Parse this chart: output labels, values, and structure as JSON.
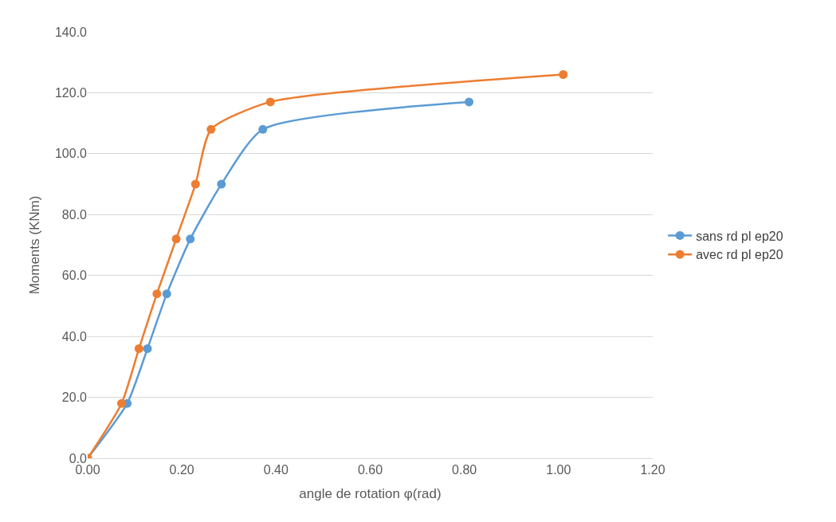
{
  "chart_data": {
    "type": "line",
    "xlabel": "angle de rotation φ(rad)",
    "ylabel": "Moments (KNm)",
    "xlim": [
      0,
      1.2
    ],
    "xticks": [
      {
        "value": 0,
        "label": "0.00"
      },
      {
        "value": 0.2,
        "label": "0.20"
      },
      {
        "value": 0.4,
        "label": "0.40"
      },
      {
        "value": 0.6,
        "label": "0.60"
      },
      {
        "value": 0.8,
        "label": "0.80"
      },
      {
        "value": 1.0,
        "label": "1.00"
      },
      {
        "value": 1.2,
        "label": "1.20"
      }
    ],
    "ylim": [
      0,
      140
    ],
    "yticks": [
      {
        "value": 0,
        "label": "0.0"
      },
      {
        "value": 20,
        "label": "20.0"
      },
      {
        "value": 40,
        "label": "40.0"
      },
      {
        "value": 60,
        "label": "60.0"
      },
      {
        "value": 80,
        "label": "80.0"
      },
      {
        "value": 100,
        "label": "100.0"
      },
      {
        "value": 120,
        "label": "120.0"
      },
      {
        "value": 140,
        "label": "140.0"
      }
    ],
    "grid": "y",
    "legend": "right",
    "marker": "circle",
    "line_style": "solid",
    "series": [
      {
        "name": "sans rd pl ep20",
        "color": "#5b9bd5",
        "x": [
          0,
          0.084,
          0.127,
          0.168,
          0.218,
          0.284,
          0.372,
          0.81
        ],
        "values": [
          0,
          18,
          36,
          54,
          72,
          90,
          108,
          117
        ]
      },
      {
        "name": "avec rd pl ep20",
        "color": "#ed7d31",
        "x": [
          0,
          0.072,
          0.109,
          0.147,
          0.188,
          0.229,
          0.262,
          0.388,
          1.01
        ],
        "values": [
          0,
          18,
          36,
          54,
          72,
          90,
          108,
          117,
          126
        ]
      }
    ]
  }
}
